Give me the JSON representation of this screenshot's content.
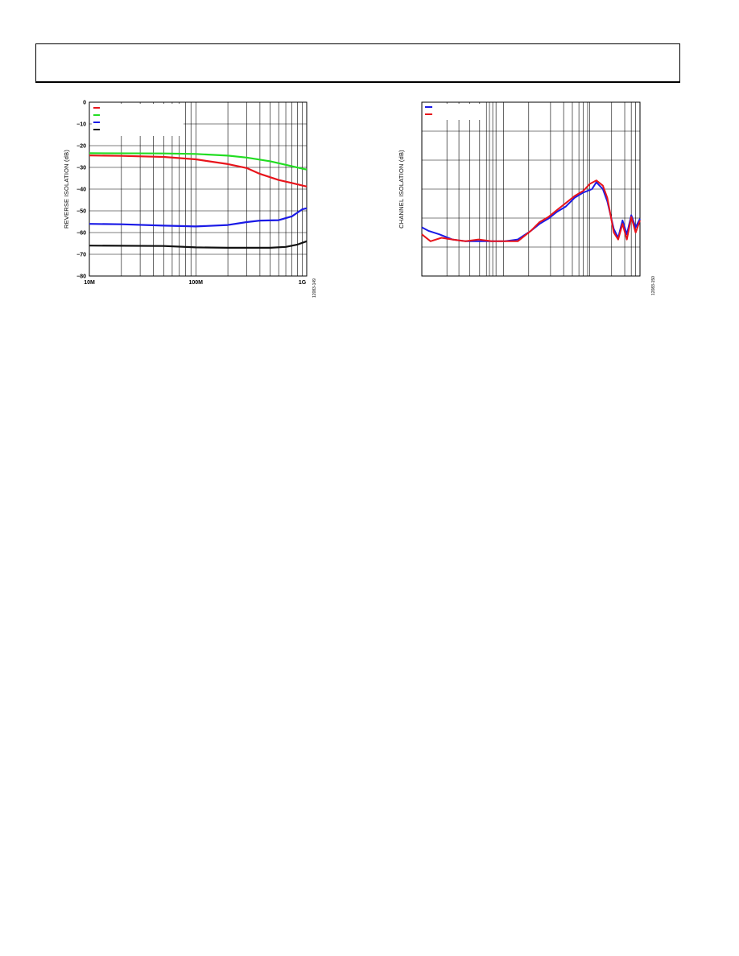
{
  "header": {
    "title": ""
  },
  "chart_data": [
    {
      "type": "line",
      "title": "",
      "xlabel": "",
      "ylabel": "REVERSE ISOLATION (dB)",
      "xscale": "log",
      "xlim": [
        10000000,
        1100000000
      ],
      "ylim": [
        -80,
        0
      ],
      "x_tick_labels": [
        "10M",
        "100M",
        "1G"
      ],
      "y_tick_labels": [
        "0",
        "−10",
        "−20",
        "−30",
        "−40",
        "−50",
        "−60",
        "−70",
        "−80"
      ],
      "grid": true,
      "legend_position": "top-left",
      "figure_id": "12083-149",
      "series": [
        {
          "color": "#e8141b",
          "x": [
            10000000,
            20000000,
            50000000,
            100000000,
            200000000,
            300000000,
            400000000,
            600000000,
            800000000,
            1100000000
          ],
          "y": [
            -24.5,
            -24.7,
            -25.2,
            -26.3,
            -28.5,
            -30.3,
            -33,
            -35.8,
            -37.2,
            -38.8
          ]
        },
        {
          "color": "#22dd22",
          "x": [
            10000000,
            50000000,
            100000000,
            200000000,
            300000000,
            500000000,
            700000000,
            1000000000,
            1100000000
          ],
          "y": [
            -23.5,
            -23.6,
            -23.8,
            -24.6,
            -25.5,
            -27.2,
            -28.8,
            -30.6,
            -31
          ]
        },
        {
          "color": "#1a1ae6",
          "x": [
            10000000,
            20000000,
            50000000,
            100000000,
            200000000,
            300000000,
            400000000,
            600000000,
            800000000,
            1000000000,
            1100000000
          ],
          "y": [
            -56,
            -56.2,
            -56.8,
            -57.2,
            -56.5,
            -55.2,
            -54.5,
            -54.3,
            -52.5,
            -49.3,
            -48.8
          ]
        },
        {
          "color": "#111111",
          "x": [
            10000000,
            50000000,
            100000000,
            200000000,
            300000000,
            500000000,
            700000000,
            900000000,
            1100000000
          ],
          "y": [
            -66,
            -66.2,
            -66.8,
            -67,
            -67,
            -67,
            -66.6,
            -65.5,
            -64
          ]
        }
      ]
    },
    {
      "type": "line",
      "title": "",
      "xlabel": "",
      "ylabel": "CHANNEL ISOLATION (dB)",
      "xscale": "log",
      "grid": true,
      "legend_position": "top-left",
      "figure_id": "12083-150",
      "series": [
        {
          "color": "#1a1ae6",
          "x": [
            0,
            0.03,
            0.08,
            0.14,
            0.2,
            0.26,
            0.32,
            0.38,
            0.44,
            0.5,
            0.54,
            0.58,
            0.62,
            0.66,
            0.7,
            0.74,
            0.78,
            0.8,
            0.83,
            0.85,
            0.88,
            0.9,
            0.92,
            0.94,
            0.96,
            0.98,
            1.0
          ],
          "y": [
            0.72,
            0.74,
            0.76,
            0.79,
            0.8,
            0.8,
            0.8,
            0.8,
            0.79,
            0.74,
            0.7,
            0.67,
            0.63,
            0.6,
            0.55,
            0.52,
            0.5,
            0.46,
            0.5,
            0.57,
            0.73,
            0.78,
            0.68,
            0.76,
            0.65,
            0.72,
            0.67
          ]
        },
        {
          "color": "#e8141b",
          "x": [
            0,
            0.04,
            0.09,
            0.14,
            0.2,
            0.26,
            0.32,
            0.38,
            0.44,
            0.5,
            0.54,
            0.58,
            0.62,
            0.66,
            0.7,
            0.74,
            0.77,
            0.8,
            0.83,
            0.85,
            0.88,
            0.9,
            0.92,
            0.94,
            0.96,
            0.98,
            1.0
          ],
          "y": [
            0.76,
            0.8,
            0.78,
            0.79,
            0.8,
            0.79,
            0.8,
            0.8,
            0.8,
            0.74,
            0.69,
            0.66,
            0.62,
            0.58,
            0.54,
            0.51,
            0.47,
            0.45,
            0.48,
            0.55,
            0.75,
            0.79,
            0.7,
            0.79,
            0.66,
            0.75,
            0.68
          ]
        }
      ]
    }
  ]
}
